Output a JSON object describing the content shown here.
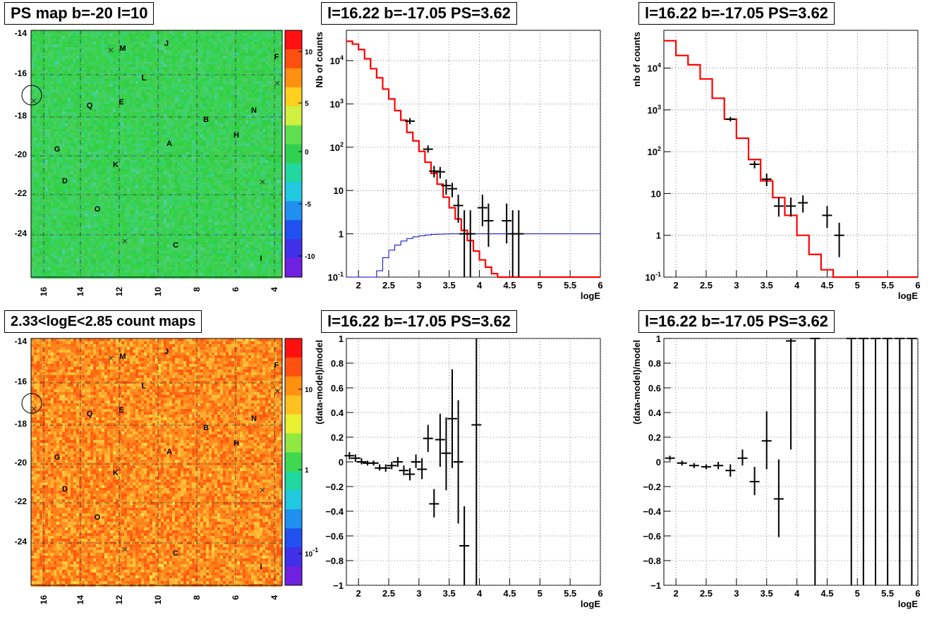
{
  "panels": {
    "map_top": {
      "title": "PS map b=-20 l=10",
      "y_ticks": [
        "-14",
        "-16",
        "-18",
        "-20",
        "-22",
        "-24"
      ],
      "x_ticks": [
        "16",
        "14",
        "12",
        "10",
        "8",
        "6",
        "4"
      ],
      "colorbar_ticks": [
        "10",
        "5",
        "0",
        "-5",
        "-10"
      ],
      "labels": [
        "M",
        "J",
        "F",
        "L",
        "Q",
        "E",
        "N",
        "B",
        "H",
        "A",
        "G",
        "K",
        "D",
        "O",
        "C",
        "I"
      ]
    },
    "map_bottom": {
      "title": "2.33<logE<2.85 count maps",
      "y_ticks": [
        "-14",
        "-16",
        "-18",
        "-20",
        "-22",
        "-24"
      ],
      "x_ticks": [
        "16",
        "14",
        "12",
        "10",
        "8",
        "6",
        "4"
      ],
      "colorbar_ticks": [
        "10",
        "1",
        "10-1"
      ],
      "labels": [
        "M",
        "J",
        "F",
        "L",
        "Q",
        "E",
        "N",
        "B",
        "H",
        "A",
        "G",
        "K",
        "D",
        "O",
        "C",
        "I"
      ]
    },
    "spec_left": {
      "title": "l=16.22 b=-17.05 PS=3.62"
    },
    "spec_right": {
      "title": "l=16.22 b=-17.05 PS=3.62"
    },
    "res_left": {
      "title": "l=16.22 b=-17.05 PS=3.62"
    },
    "res_right": {
      "title": "l=16.22 b=-17.05 PS=3.62"
    }
  },
  "chart_data": [
    {
      "type": "line",
      "title": "l=16.22 b=-17.05 PS=3.62",
      "xlabel": "logE",
      "ylabel": "Nb of counts",
      "xlim": [
        1.8,
        6.0
      ],
      "ylim": [
        0.1,
        50000
      ],
      "yscale": "log",
      "x_ticks": [
        "2",
        "2.5",
        "3",
        "3.5",
        "4",
        "4.5",
        "5",
        "5.5",
        "6"
      ],
      "y_ticks": [
        "10-1",
        "1",
        "10",
        "102",
        "103",
        "104"
      ],
      "series": [
        {
          "style": "red-step",
          "edges": [
            1.8,
            1.9,
            2.0,
            2.1,
            2.2,
            2.3,
            2.4,
            2.5,
            2.6,
            2.7,
            2.8,
            2.9,
            3.0,
            3.1,
            3.2,
            3.3,
            3.4,
            3.5,
            3.6,
            3.7,
            3.8,
            3.9,
            4.0,
            4.1,
            4.2,
            4.3,
            4.4,
            4.5,
            4.6,
            4.7,
            6.0
          ],
          "values": [
            28000,
            24000,
            18000,
            11000,
            6500,
            4000,
            2200,
            1300,
            700,
            420,
            220,
            140,
            80,
            45,
            25,
            14,
            7,
            4,
            2.2,
            1.2,
            0.7,
            0.4,
            0.25,
            0.17,
            0.12,
            0.1,
            0.1,
            0.1,
            0.1,
            0.1
          ]
        },
        {
          "style": "blue-step",
          "edges": [
            1.8,
            2.3,
            2.4,
            2.5,
            2.6,
            2.7,
            2.8,
            2.9,
            3.0,
            3.1,
            3.2,
            3.3,
            3.4,
            3.5,
            3.6,
            3.7,
            3.8,
            6.0
          ],
          "values": [
            0.1,
            0.14,
            0.28,
            0.42,
            0.55,
            0.68,
            0.78,
            0.85,
            0.9,
            0.94,
            0.97,
            0.98,
            0.99,
            1.0,
            1.0,
            1.0,
            1.0
          ]
        },
        {
          "style": "black-points",
          "x": [
            2.85,
            3.15,
            3.25,
            3.35,
            3.45,
            3.55,
            3.65,
            3.75,
            3.85,
            4.05,
            4.15,
            4.45,
            4.55,
            4.65
          ],
          "y": [
            400,
            90,
            28,
            27,
            13,
            11,
            4.5,
            1,
            1,
            4,
            2,
            2,
            1,
            1
          ],
          "ylow": [
            340,
            75,
            20,
            19,
            8,
            7,
            1.8,
            0.1,
            0.1,
            1.5,
            0.5,
            0.6,
            0.1,
            0.1
          ],
          "yhigh": [
            470,
            110,
            37,
            35,
            18,
            15,
            8,
            3.5,
            3.5,
            8,
            5,
            5,
            3.5,
            3.5
          ]
        }
      ]
    },
    {
      "type": "line",
      "title": "l=16.22 b=-17.05 PS=3.62",
      "xlabel": "logE",
      "ylabel": "nb of counts",
      "xlim": [
        1.8,
        6.0
      ],
      "ylim": [
        0.1,
        80000
      ],
      "yscale": "log",
      "x_ticks": [
        "2",
        "2.5",
        "3",
        "3.5",
        "4",
        "4.5",
        "5",
        "5.5",
        "6"
      ],
      "y_ticks": [
        "10-1",
        "1",
        "10",
        "102",
        "103",
        "104"
      ],
      "series": [
        {
          "style": "red-step",
          "edges": [
            1.8,
            2.0,
            2.2,
            2.4,
            2.6,
            2.8,
            3.0,
            3.2,
            3.4,
            3.6,
            3.8,
            4.0,
            4.2,
            4.4,
            4.6,
            4.8,
            6.0
          ],
          "values": [
            45000,
            20000,
            12000,
            5500,
            1900,
            600,
            210,
            65,
            20,
            8,
            3,
            1,
            0.35,
            0.15,
            0.1,
            0.1
          ]
        },
        {
          "style": "black-points",
          "x": [
            2.9,
            3.3,
            3.5,
            3.7,
            3.9,
            4.1,
            4.5,
            4.7
          ],
          "y": [
            600,
            50,
            22,
            5,
            5,
            6,
            3,
            1
          ],
          "ylow": [
            530,
            40,
            15,
            2.8,
            2.8,
            3.5,
            1.5,
            0.3
          ],
          "yhigh": [
            680,
            60,
            30,
            8,
            8,
            9,
            5,
            2
          ]
        }
      ]
    },
    {
      "type": "scatter",
      "title": "l=16.22 b=-17.05 PS=3.62",
      "xlabel": "logE",
      "ylabel": "(data-model)/model",
      "xlim": [
        1.8,
        6.0
      ],
      "ylim": [
        -1,
        1
      ],
      "x_ticks": [
        "2",
        "2.5",
        "3",
        "3.5",
        "4",
        "4.5",
        "5",
        "5.5",
        "6"
      ],
      "y_ticks": [
        "-1",
        "-0.8",
        "-0.6",
        "-0.4",
        "-0.2",
        "0",
        "0.2",
        "0.4",
        "0.6",
        "0.8",
        "1"
      ],
      "series": [
        {
          "style": "black-points",
          "x": [
            1.85,
            1.95,
            2.05,
            2.15,
            2.25,
            2.35,
            2.45,
            2.55,
            2.65,
            2.75,
            2.85,
            2.95,
            3.05,
            3.15,
            3.25,
            3.35,
            3.45,
            3.55,
            3.65,
            3.75,
            3.95
          ],
          "y": [
            0.05,
            0.03,
            0.0,
            -0.01,
            -0.01,
            -0.05,
            -0.05,
            -0.03,
            0.0,
            -0.07,
            -0.1,
            0.0,
            -0.06,
            0.19,
            -0.34,
            0.18,
            0.07,
            0.35,
            0.0,
            -0.68,
            0.3
          ],
          "ylow": [
            0.02,
            0.0,
            -0.02,
            -0.03,
            -0.03,
            -0.07,
            -0.08,
            -0.06,
            -0.04,
            -0.11,
            -0.15,
            -0.05,
            -0.14,
            0.08,
            -0.45,
            -0.04,
            -0.23,
            -0.05,
            -0.5,
            -1.0,
            -1.0
          ],
          "yhigh": [
            0.08,
            0.06,
            0.03,
            0.01,
            0.01,
            -0.02,
            -0.02,
            0.0,
            0.04,
            -0.03,
            -0.05,
            0.06,
            0.03,
            0.3,
            -0.22,
            0.39,
            0.36,
            0.75,
            0.5,
            -0.36,
            1.0
          ]
        }
      ]
    },
    {
      "type": "scatter",
      "title": "l=16.22 b=-17.05 PS=3.62",
      "xlabel": "logE",
      "ylabel": "(data-model)/model",
      "xlim": [
        1.8,
        6.0
      ],
      "ylim": [
        -1,
        1
      ],
      "x_ticks": [
        "2",
        "2.5",
        "3",
        "3.5",
        "4",
        "4.5",
        "5",
        "5.5",
        "6"
      ],
      "y_ticks": [
        "-1",
        "-0.8",
        "-0.6",
        "-0.4",
        "-0.2",
        "0",
        "0.2",
        "0.4",
        "0.6",
        "0.8",
        "1"
      ],
      "series": [
        {
          "style": "black-points",
          "x": [
            1.9,
            2.1,
            2.3,
            2.5,
            2.7,
            2.9,
            3.1,
            3.3,
            3.5,
            3.7,
            3.9,
            4.3,
            4.9,
            5.1,
            5.3,
            5.5,
            5.7,
            5.9
          ],
          "y": [
            0.03,
            -0.01,
            -0.03,
            -0.04,
            -0.03,
            -0.07,
            0.03,
            -0.16,
            0.17,
            -0.3,
            0.98,
            1.0,
            1.0,
            1.0,
            1.0,
            1.0,
            1.0,
            1.0
          ],
          "ylow": [
            0.01,
            -0.03,
            -0.05,
            -0.06,
            -0.06,
            -0.12,
            -0.03,
            -0.27,
            -0.06,
            -0.61,
            0.1,
            -1.0,
            -1.0,
            -1.0,
            -1.0,
            -1.0,
            -1.0,
            -1.0
          ],
          "yhigh": [
            0.05,
            0.01,
            -0.01,
            -0.02,
            0.0,
            -0.02,
            0.1,
            -0.04,
            0.41,
            0.02,
            1.0,
            1.0,
            1.0,
            1.0,
            1.0,
            1.0,
            1.0,
            1.0
          ]
        }
      ]
    }
  ]
}
